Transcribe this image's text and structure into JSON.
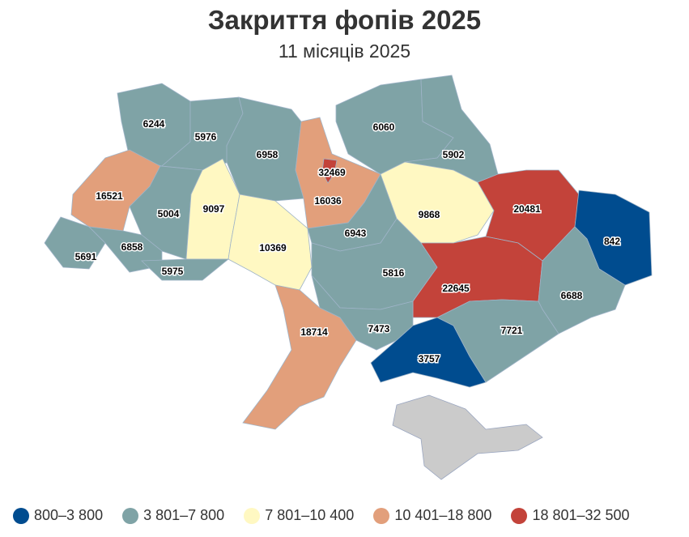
{
  "title": "Закриття фопів 2025",
  "subtitle": "11 місяців 2025",
  "legend": [
    {
      "label": "800–3 800",
      "min": 800,
      "max": 3800,
      "color": "#004c8f"
    },
    {
      "label": "3 801–7 800",
      "min": 3801,
      "max": 7800,
      "color": "#7fa3a6"
    },
    {
      "label": "7 801–10 400",
      "min": 7801,
      "max": 10400,
      "color": "#fff8c2"
    },
    {
      "label": "10 401–18 800",
      "min": 10401,
      "max": 18800,
      "color": "#e29f7b"
    },
    {
      "label": "18 801–32 500",
      "min": 18801,
      "max": 32500,
      "color": "#c3433a"
    }
  ],
  "no_data_color": "#cbcbcb",
  "regions": [
    {
      "id": "volyn",
      "value": 6244
    },
    {
      "id": "rivne",
      "value": 5976
    },
    {
      "id": "zhytomyr",
      "value": 6958
    },
    {
      "id": "chernihiv",
      "value": 6060
    },
    {
      "id": "sumy",
      "value": 5902
    },
    {
      "id": "kyiv-oblast",
      "value": 16036
    },
    {
      "id": "lviv",
      "value": 16521
    },
    {
      "id": "ternopil",
      "value": 5004
    },
    {
      "id": "khmelnytskyi",
      "value": 9097
    },
    {
      "id": "vinnytsia",
      "value": 10369
    },
    {
      "id": "zakarpattia",
      "value": 5691
    },
    {
      "id": "ivano-frankivsk",
      "value": 6858
    },
    {
      "id": "chernivtsi",
      "value": 5975
    },
    {
      "id": "cherkasy",
      "value": 6943
    },
    {
      "id": "poltava",
      "value": 9868
    },
    {
      "id": "kharkiv",
      "value": 20481
    },
    {
      "id": "luhansk",
      "value": 842
    },
    {
      "id": "kirovohrad",
      "value": 5816
    },
    {
      "id": "dnipropetrovsk",
      "value": 22645
    },
    {
      "id": "donetsk",
      "value": 6688
    },
    {
      "id": "zaporizhzhia",
      "value": 7721
    },
    {
      "id": "odesa",
      "value": 18714
    },
    {
      "id": "mykolaiv",
      "value": 7473
    },
    {
      "id": "kherson",
      "value": 3757
    },
    {
      "id": "kyiv-city",
      "value": 32469
    },
    {
      "id": "crimea",
      "value": null
    }
  ]
}
